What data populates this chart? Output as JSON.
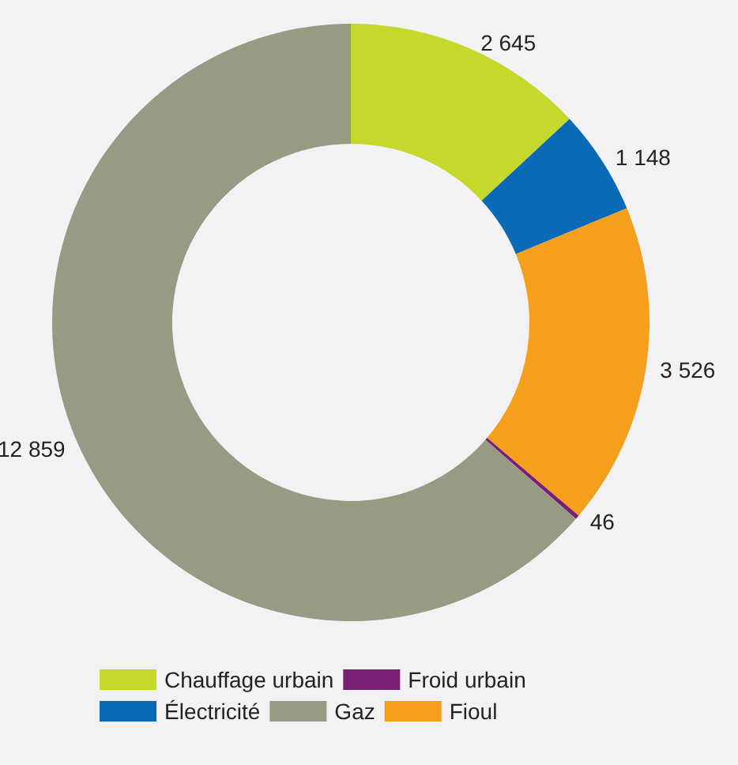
{
  "chart_data": {
    "type": "donut",
    "categories": [
      "Chauffage urbain",
      "Électricité",
      "Fioul",
      "Froid urbain",
      "Gaz"
    ],
    "values": [
      2645,
      1148,
      3526,
      46,
      12859
    ],
    "colors": [
      "#c5d92d",
      "#0a6ab5",
      "#f5a01d",
      "#7b1f74",
      "#989b84"
    ],
    "value_labels": [
      "2 645",
      "1 148",
      "3 526",
      "46",
      "12 859"
    ],
    "legend": "bottom left"
  }
}
